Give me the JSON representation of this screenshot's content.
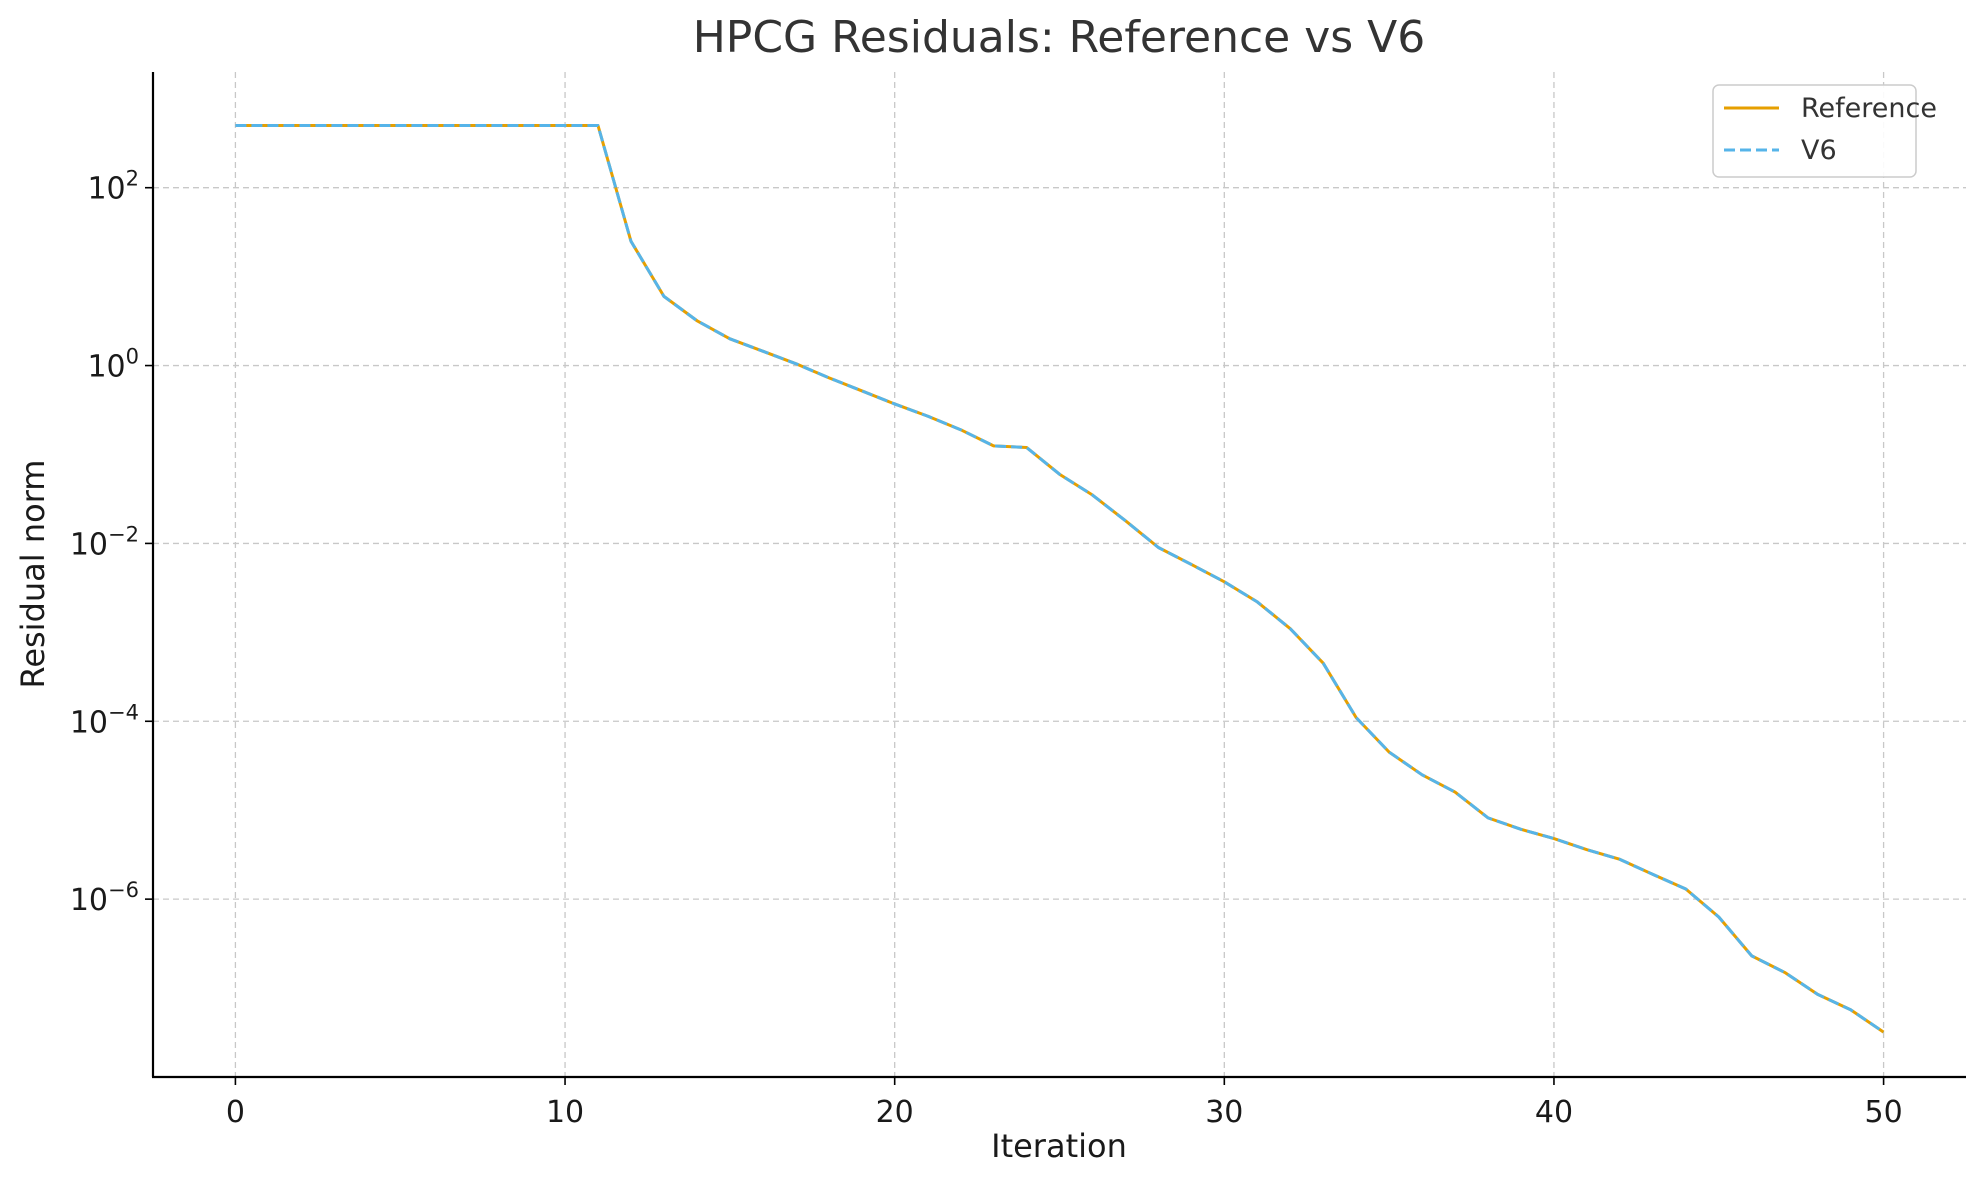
{
  "chart_data": {
    "type": "line",
    "title": "HPCG Residuals: Reference vs V6",
    "xlabel": "Iteration",
    "ylabel": "Residual norm",
    "yscale": "log",
    "xlim": [
      -2.5,
      52.5
    ],
    "ylim": [
      1e-08,
      2000
    ],
    "x_ticks": [
      "0",
      "10",
      "20",
      "30",
      "40",
      "50"
    ],
    "y_ticks": [
      {
        "base": "10",
        "exp": "2",
        "value": 100
      },
      {
        "base": "10",
        "exp": "0",
        "value": 1
      },
      {
        "base": "10",
        "exp": "−2",
        "value": 0.01
      },
      {
        "base": "10",
        "exp": "−4",
        "value": 0.0001
      },
      {
        "base": "10",
        "exp": "−6",
        "value": 1e-06
      }
    ],
    "grid": true,
    "legend_position": "top-right",
    "x": [
      0,
      1,
      2,
      3,
      4,
      5,
      6,
      7,
      8,
      9,
      10,
      11,
      12,
      13,
      14,
      15,
      16,
      17,
      18,
      19,
      20,
      21,
      22,
      23,
      24,
      25,
      26,
      27,
      28,
      29,
      30,
      31,
      32,
      33,
      34,
      35,
      36,
      37,
      38,
      39,
      40,
      41,
      42,
      43,
      44,
      45,
      46,
      47,
      48,
      49,
      50
    ],
    "series": [
      {
        "name": "Reference",
        "color": "#E69F00",
        "style": "solid",
        "values": [
          500,
          500,
          500,
          500,
          500,
          500,
          500,
          500,
          500,
          500,
          500,
          500,
          25,
          6,
          3.2,
          2.0,
          1.45,
          1.05,
          0.73,
          0.52,
          0.37,
          0.27,
          0.19,
          0.125,
          0.12,
          0.06,
          0.035,
          0.018,
          0.009,
          0.0058,
          0.0037,
          0.0022,
          0.0011,
          0.00045,
          0.00011,
          4.5e-05,
          2.5e-05,
          1.6e-05,
          8.2e-06,
          6.1e-06,
          4.8e-06,
          3.6e-06,
          2.8e-06,
          1.9e-06,
          1.3e-06,
          6.3e-07,
          2.3e-07,
          1.5e-07,
          8.5e-08,
          5.7e-08,
          3.2e-08
        ]
      },
      {
        "name": "V6",
        "color": "#56B4E9",
        "style": "dashed",
        "values": [
          500,
          500,
          500,
          500,
          500,
          500,
          500,
          500,
          500,
          500,
          500,
          500,
          25,
          6,
          3.2,
          2.0,
          1.45,
          1.05,
          0.73,
          0.52,
          0.37,
          0.27,
          0.19,
          0.125,
          0.12,
          0.06,
          0.035,
          0.018,
          0.009,
          0.0058,
          0.0037,
          0.0022,
          0.0011,
          0.00045,
          0.00011,
          4.5e-05,
          2.5e-05,
          1.6e-05,
          8.2e-06,
          6.1e-06,
          4.8e-06,
          3.6e-06,
          2.8e-06,
          1.9e-06,
          1.3e-06,
          6.3e-07,
          2.3e-07,
          1.5e-07,
          8.5e-08,
          5.7e-08,
          3.2e-08
        ]
      }
    ]
  }
}
